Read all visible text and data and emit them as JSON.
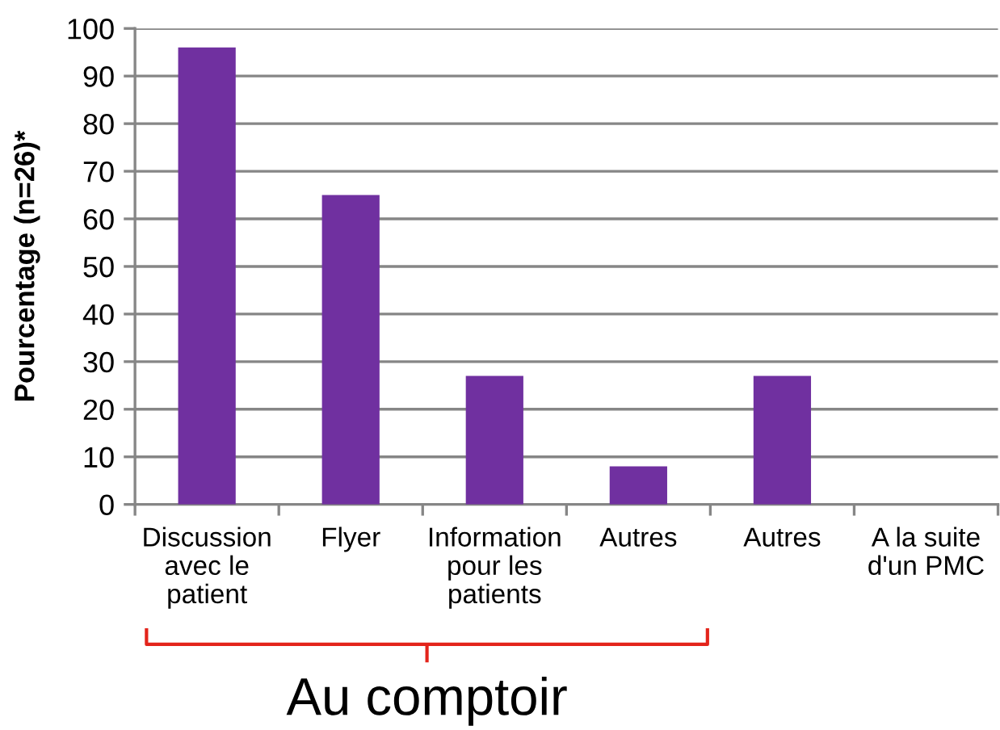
{
  "chart_data": {
    "type": "bar",
    "ylabel": "Pourcentage (n=26)*",
    "categories": [
      "Discussion\navec le\npatient",
      "Flyer",
      "Information\npour les\npatients",
      "Autres",
      "Autres",
      "A la suite\nd'un PMC"
    ],
    "values": [
      96,
      65,
      27,
      8,
      27,
      0
    ],
    "color": "#7030a0",
    "ylim": [
      0,
      100
    ],
    "yticks": [
      0,
      10,
      20,
      30,
      40,
      50,
      60,
      70,
      80,
      90,
      100
    ],
    "grid": "y",
    "annotations": [
      "Au comptoir"
    ]
  }
}
